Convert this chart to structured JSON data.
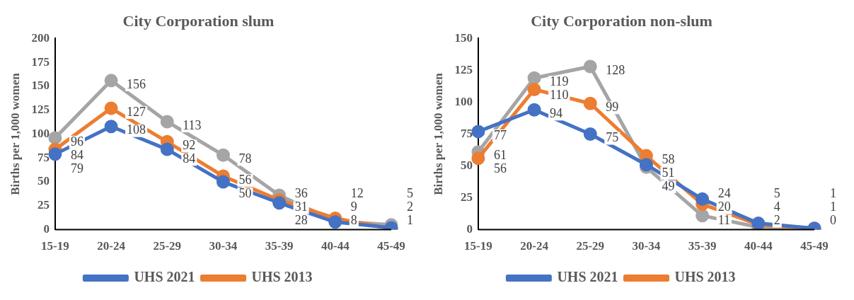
{
  "chart_data": [
    {
      "type": "line",
      "title": "City Corporation slum",
      "ylabel": "Births per 1,000 women",
      "categories": [
        "15-19",
        "20-24",
        "25-29",
        "30-34",
        "35-39",
        "40-44",
        "45-49"
      ],
      "series": [
        {
          "name": "UHS 2021",
          "color": "#4472c4",
          "values": [
            79,
            108,
            84,
            50,
            28,
            8,
            2
          ]
        },
        {
          "name": "UHS 2013",
          "color": "#ed7d31",
          "values": [
            84,
            127,
            92,
            56,
            31,
            12,
            1
          ]
        },
        {
          "color": "#a5a5a5",
          "values": [
            96,
            156,
            113,
            78,
            36,
            9,
            5
          ]
        }
      ],
      "ylim": [
        0,
        200
      ],
      "yticks": [
        0,
        25,
        50,
        75,
        100,
        125,
        150,
        175,
        200
      ],
      "grid": false,
      "legend": "bottom",
      "marker": "circle",
      "data_labels": true
    },
    {
      "type": "line",
      "title": "City Corporation non-slum",
      "ylabel": "Births per 1,000 women",
      "categories": [
        "15-19",
        "20-24",
        "25-29",
        "30-34",
        "35-39",
        "40-44",
        "45-49"
      ],
      "series": [
        {
          "name": "UHS 2021",
          "color": "#4472c4",
          "values": [
            77,
            94,
            75,
            51,
            24,
            5,
            1
          ]
        },
        {
          "name": "UHS 2013",
          "color": "#ed7d31",
          "values": [
            56,
            110,
            99,
            58,
            20,
            4,
            1
          ]
        },
        {
          "color": "#a5a5a5",
          "values": [
            61,
            119,
            128,
            49,
            11,
            2,
            0
          ]
        }
      ],
      "ylim": [
        0,
        150
      ],
      "yticks": [
        0,
        25,
        50,
        75,
        100,
        125,
        150
      ],
      "grid": false,
      "legend": "bottom",
      "marker": "circle",
      "data_labels": true
    }
  ]
}
